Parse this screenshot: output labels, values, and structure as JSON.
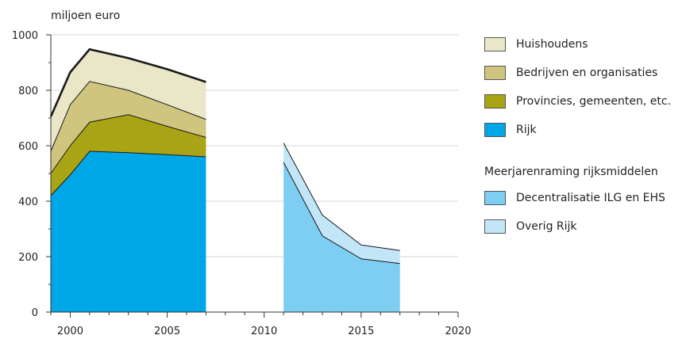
{
  "chart_data": {
    "type": "area",
    "unit_label": "miljoen euro",
    "ylim": [
      0,
      1000
    ],
    "xlim": [
      1999,
      2020
    ],
    "y_ticks": [
      0,
      200,
      400,
      600,
      800,
      1000
    ],
    "x_ticks": [
      2000,
      2005,
      2010,
      2015,
      2020
    ],
    "grid": true,
    "legend_position": "right",
    "historical": {
      "x": [
        1999,
        2000,
        2001,
        2003,
        2005,
        2007
      ],
      "series": [
        {
          "name": "Rijk",
          "values": [
            420,
            495,
            580,
            575,
            568,
            560
          ],
          "color": "#00A7E7"
        },
        {
          "name": "Provincies, gemeenten, etc.",
          "values": [
            80,
            105,
            105,
            137,
            102,
            70
          ],
          "color": "#A9A415"
        },
        {
          "name": "Bedrijven en organisaties",
          "values": [
            80,
            148,
            147,
            88,
            78,
            65
          ],
          "color": "#CFC57E"
        },
        {
          "name": "Huishoudens",
          "values": [
            125,
            117,
            116,
            116,
            128,
            135
          ],
          "color": "#E9E7C8"
        }
      ]
    },
    "projection_heading": "Meerjarenraming rijksmiddelen",
    "projection": {
      "x": [
        2011,
        2013,
        2015,
        2017
      ],
      "series": [
        {
          "name": "Decentralisatie ILG en EHS",
          "values": [
            540,
            275,
            192,
            175
          ],
          "color": "#7DCEF2"
        },
        {
          "name": "Overig Rijk",
          "values": [
            70,
            75,
            50,
            47
          ],
          "color": "#C2E6F7"
        }
      ]
    }
  }
}
